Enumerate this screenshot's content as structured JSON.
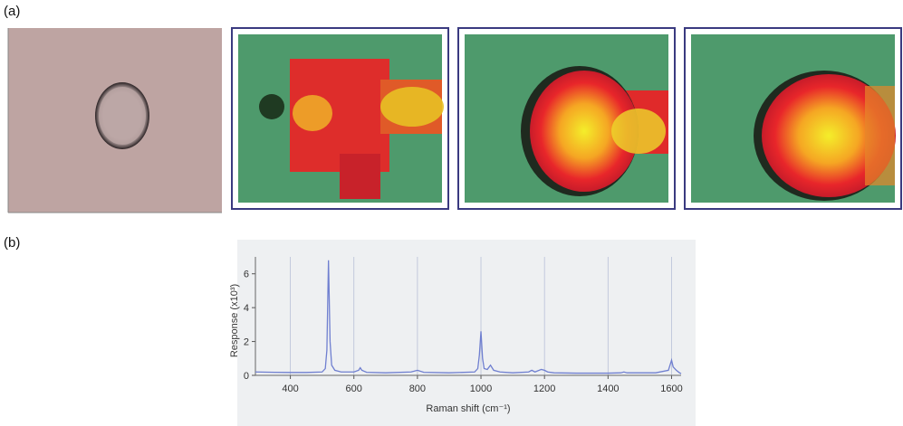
{
  "panel_labels": [
    "(a)",
    "(b)"
  ],
  "chart_data": {
    "type": "line",
    "x_label": "Raman shift (cm⁻¹)",
    "y_label": "Response (x10³)",
    "x": [
      290,
      350,
      400,
      450,
      500,
      510,
      515,
      520,
      525,
      530,
      540,
      560,
      600,
      615,
      620,
      625,
      640,
      700,
      780,
      800,
      820,
      900,
      980,
      990,
      995,
      1000,
      1005,
      1010,
      1020,
      1030,
      1040,
      1060,
      1100,
      1150,
      1160,
      1170,
      1190,
      1200,
      1210,
      1230,
      1300,
      1400,
      1440,
      1450,
      1460,
      1550,
      1590,
      1600,
      1605,
      1615,
      1625,
      1630
    ],
    "series": [
      {
        "color": "#6f7fd0",
        "values": [
          0.2,
          0.18,
          0.17,
          0.17,
          0.2,
          0.4,
          1.5,
          6.8,
          2.0,
          0.6,
          0.3,
          0.2,
          0.2,
          0.3,
          0.45,
          0.3,
          0.18,
          0.15,
          0.2,
          0.3,
          0.18,
          0.15,
          0.2,
          0.4,
          1.2,
          2.6,
          1.0,
          0.4,
          0.35,
          0.6,
          0.3,
          0.2,
          0.15,
          0.2,
          0.3,
          0.2,
          0.35,
          0.3,
          0.2,
          0.15,
          0.13,
          0.13,
          0.15,
          0.2,
          0.15,
          0.15,
          0.3,
          0.9,
          0.5,
          0.3,
          0.15,
          0.1
        ]
      }
    ],
    "xlim": [
      290,
      1630
    ],
    "ylim": [
      0,
      7
    ],
    "xticks": [
      400,
      600,
      800,
      1000,
      1200,
      1400,
      1600
    ],
    "yticks": [
      0,
      2,
      4,
      6
    ],
    "grid": true
  }
}
